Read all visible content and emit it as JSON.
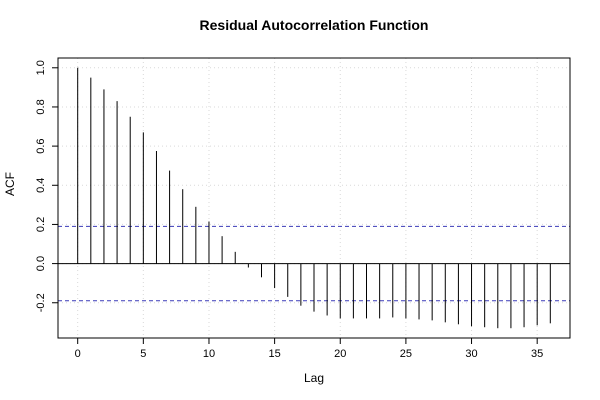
{
  "chart_data": {
    "type": "bar",
    "title": "Residual Autocorrelation Function",
    "xlabel": "Lag",
    "ylabel": "ACF",
    "xlim": [
      -1.5,
      37.5
    ],
    "ylim": [
      -0.38,
      1.05
    ],
    "x_ticks": [
      0,
      5,
      10,
      15,
      20,
      25,
      30,
      35
    ],
    "x_tick_labels": [
      "0",
      "5",
      "10",
      "15",
      "20",
      "25",
      "30",
      "35"
    ],
    "y_ticks": [
      -0.2,
      0.0,
      0.2,
      0.4,
      0.6,
      0.8,
      1.0
    ],
    "y_tick_labels": [
      "-0.2",
      "0.0",
      "0.2",
      "0.4",
      "0.6",
      "0.8",
      "1.0"
    ],
    "lags": [
      0,
      1,
      2,
      3,
      4,
      5,
      6,
      7,
      8,
      9,
      10,
      11,
      12,
      13,
      14,
      15,
      16,
      17,
      18,
      19,
      20,
      21,
      22,
      23,
      24,
      25,
      26,
      27,
      28,
      29,
      30,
      31,
      32,
      33,
      34,
      35,
      36
    ],
    "acf": [
      1.0,
      0.95,
      0.89,
      0.83,
      0.75,
      0.67,
      0.575,
      0.475,
      0.38,
      0.29,
      0.215,
      0.14,
      0.06,
      -0.02,
      -0.07,
      -0.125,
      -0.17,
      -0.215,
      -0.245,
      -0.265,
      -0.28,
      -0.28,
      -0.28,
      -0.28,
      -0.275,
      -0.28,
      -0.285,
      -0.29,
      -0.3,
      -0.31,
      -0.32,
      -0.325,
      -0.33,
      -0.33,
      -0.325,
      -0.315,
      -0.305
    ],
    "confidence_limits": [
      0.19,
      -0.19
    ],
    "grid": true,
    "colors": {
      "bars": "#000000",
      "confidence": "#3a3ab8",
      "grid": "#d9d9d9",
      "zero_line": "#000000"
    }
  }
}
